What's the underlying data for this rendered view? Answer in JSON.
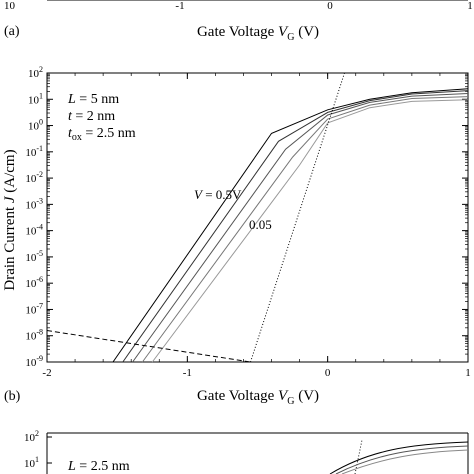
{
  "chart_data": [
    {
      "type": "line",
      "panel": "(a)",
      "partial": true,
      "xlabel": "Gate Voltage V_G (V)",
      "xlabel_main": "Gate Voltage ",
      "xlabel_var": "V",
      "xlabel_sub": "G",
      "xlabel_unit": " (V)",
      "x_tick_labels": [
        "-1",
        "0",
        "1"
      ],
      "y_tick_labels_visible": [
        "10"
      ]
    },
    {
      "type": "line",
      "panel": "(b)",
      "xlabel": "Gate Voltage V_G (V)",
      "xlabel_main": "Gate Voltage ",
      "xlabel_var": "V",
      "xlabel_sub": "G",
      "xlabel_unit": " (V)",
      "ylabel": "Drain Current J (A/cm)",
      "xlim": [
        -2,
        1
      ],
      "ylim_log10": [
        -9,
        2
      ],
      "y_scale": "log",
      "grid": false,
      "x_ticks": [
        -2,
        -1,
        0,
        1
      ],
      "x_tick_labels": [
        "-2",
        "-1",
        "0",
        "1"
      ],
      "y_ticks_exp": [
        2,
        1,
        0,
        -1,
        -2,
        -3,
        -4,
        -5,
        -6,
        -7,
        -8,
        -9
      ],
      "y_tick_base": "10",
      "params": [
        {
          "var": "L",
          "text": " = 5 nm"
        },
        {
          "var": "t",
          "text": " = 2 nm"
        },
        {
          "var": "t",
          "sub": "ox",
          "text": " = 2.5 nm"
        }
      ],
      "annotations": {
        "top_var": "V",
        "top_text": " = 0.5V",
        "bottom_text": "0.05"
      },
      "series": [
        {
          "style": "solid",
          "x": [
            -1.53,
            -0.4,
            0.0,
            0.3,
            0.6,
            1.0
          ],
          "log10_y": [
            -9,
            -0.3,
            0.6,
            1.0,
            1.25,
            1.4
          ]
        },
        {
          "style": "solid",
          "x": [
            -1.46,
            -0.35,
            0.0,
            0.3,
            0.6,
            1.0
          ],
          "log10_y": [
            -9,
            -0.6,
            0.5,
            0.95,
            1.2,
            1.33
          ]
        },
        {
          "style": "solid",
          "x": [
            -1.39,
            -0.3,
            0.0,
            0.3,
            0.6,
            1.0
          ],
          "log10_y": [
            -9,
            -0.9,
            0.4,
            0.88,
            1.12,
            1.22
          ]
        },
        {
          "style": "solid",
          "x": [
            -1.32,
            -0.25,
            0.0,
            0.3,
            0.6,
            1.0
          ],
          "log10_y": [
            -9,
            -1.2,
            0.25,
            0.78,
            1.03,
            1.1
          ]
        },
        {
          "style": "solid",
          "x": [
            -1.25,
            -0.2,
            0.0,
            0.3,
            0.6,
            1.0
          ],
          "log10_y": [
            -9,
            -1.5,
            0.1,
            0.68,
            0.92,
            0.98
          ]
        },
        {
          "style": "dashed",
          "x": [
            -2.0,
            -0.55
          ],
          "log10_y": [
            -7.8,
            -9.0
          ]
        },
        {
          "style": "dotted",
          "x": [
            -0.55,
            0.12
          ],
          "log10_y": [
            -9.0,
            2.0
          ]
        }
      ]
    },
    {
      "type": "line",
      "panel": "(c)",
      "partial": true,
      "y_tick_labels_visible": [
        "10",
        "10"
      ],
      "y_tick_exps_visible": [
        "2",
        "1"
      ],
      "params": [
        {
          "var": "L",
          "text": " = 2.5 nm"
        }
      ]
    }
  ]
}
